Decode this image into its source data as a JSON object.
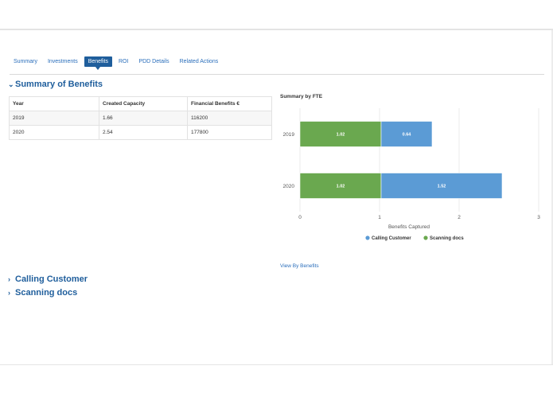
{
  "tabs": [
    {
      "label": "Summary",
      "active": false
    },
    {
      "label": "Investments",
      "active": false
    },
    {
      "label": "Benefits",
      "active": true
    },
    {
      "label": "ROI",
      "active": false
    },
    {
      "label": "PDD Details",
      "active": false
    },
    {
      "label": "Related Actions",
      "active": false
    }
  ],
  "summary": {
    "title": "Summary of Benefits",
    "table": {
      "headers": [
        "Year",
        "Created Capacity",
        "Financial Benefits €"
      ],
      "rows": [
        [
          "2019",
          "1.66",
          "116200"
        ],
        [
          "2020",
          "2.54",
          "177800"
        ]
      ]
    }
  },
  "chart_title": "Summary by FTE",
  "chart_data": {
    "type": "bar",
    "orientation": "horizontal",
    "stacked": true,
    "categories": [
      "2019",
      "2020"
    ],
    "series": [
      {
        "name": "Scanning docs",
        "color": "#6aa84f",
        "values": [
          1.02,
          1.02
        ],
        "labels": [
          "1.02",
          "1.02"
        ]
      },
      {
        "name": "Calling Customer",
        "color": "#5b9bd5",
        "values": [
          0.64,
          1.52
        ],
        "labels": [
          "0.64",
          "1.52"
        ]
      }
    ],
    "xlabel": "Benefits Captured",
    "xlim": [
      0,
      3
    ],
    "xticks": [
      "0",
      "1",
      "2",
      "3"
    ],
    "legend": [
      {
        "name": "Calling Customer",
        "color": "#5b9bd5"
      },
      {
        "name": "Scanning docs",
        "color": "#6aa84f"
      }
    ],
    "legend_position": "bottom"
  },
  "view_link": "View By Benefits",
  "sections": [
    {
      "title": "Calling Customer"
    },
    {
      "title": "Scanning docs"
    }
  ]
}
